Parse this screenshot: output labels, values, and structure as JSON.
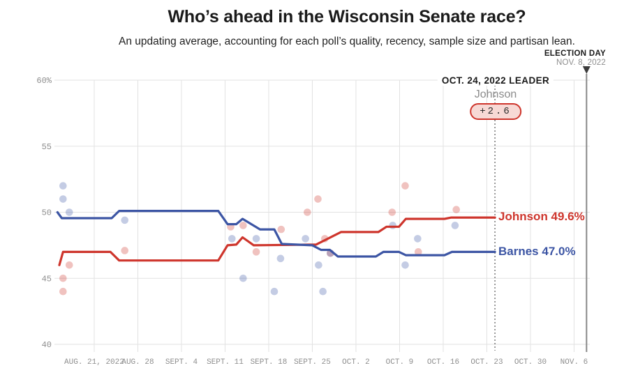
{
  "title": "Who’s ahead in the Wisconsin Senate race?",
  "subtitle": "An updating average, accounting for each poll’s quality, recency, sample size and partisan lean.",
  "election_day": {
    "label": "ELECTION DAY",
    "date": "NOV. 8, 2022"
  },
  "leader_annotation": {
    "heading": "OCT. 24, 2022 LEADER",
    "name": "Johnson",
    "margin": "+2.6"
  },
  "colors": {
    "johnson": "#ce352c",
    "barnes": "#3c55a4",
    "grid": "#e2e2e2",
    "axis_text": "#8e8e8e",
    "dotted_line": "#555555",
    "election_line": "#888888",
    "triangle": "#3b3b3b",
    "badge_fill": "#f7d9d5"
  },
  "chart_data": {
    "type": "line",
    "title": "Who’s ahead in the Wisconsin Senate race?",
    "x_axis": {
      "unit": "days (0 = AUG. 15, 2022)",
      "tick_days": [
        6,
        13,
        20,
        27,
        34,
        41,
        48,
        55,
        62,
        69,
        76,
        83
      ],
      "tick_labels": [
        "AUG. 21, 2022",
        "AUG. 28",
        "SEPT. 4",
        "SEPT. 11",
        "SEPT. 18",
        "SEPT. 25",
        "OCT. 2",
        "OCT. 9",
        "OCT. 16",
        "OCT. 23",
        "OCT. 30",
        "NOV. 6"
      ]
    },
    "y_axis": {
      "tick_values": [
        60,
        55,
        50,
        45,
        40
      ],
      "tick_labels": [
        "60%",
        "55",
        "50",
        "45",
        "40"
      ],
      "range": [
        40,
        60
      ],
      "grid": true
    },
    "series": [
      {
        "name": "Johnson",
        "final_value": 49.6,
        "final_label": "Johnson 49.6%",
        "color_key": "johnson",
        "points": [
          [
            0.4,
            46.0
          ],
          [
            1.0,
            47.0
          ],
          [
            8.6,
            47.0
          ],
          [
            10.0,
            46.35
          ],
          [
            25.9,
            46.35
          ],
          [
            27.4,
            47.5
          ],
          [
            28.8,
            47.55
          ],
          [
            29.8,
            48.1
          ],
          [
            31.6,
            47.5
          ],
          [
            41.6,
            47.55
          ],
          [
            45.6,
            48.5
          ],
          [
            51.6,
            48.5
          ],
          [
            52.9,
            48.9
          ],
          [
            54.9,
            48.9
          ],
          [
            56.0,
            49.5
          ],
          [
            62.2,
            49.5
          ],
          [
            63.3,
            49.6
          ],
          [
            70.3,
            49.6
          ]
        ]
      },
      {
        "name": "Barnes",
        "final_value": 47.0,
        "final_label": "Barnes 47.0%",
        "color_key": "barnes",
        "points": [
          [
            0.1,
            50.0
          ],
          [
            0.8,
            49.55
          ],
          [
            8.8,
            49.55
          ],
          [
            10.0,
            50.1
          ],
          [
            25.9,
            50.1
          ],
          [
            27.4,
            49.1
          ],
          [
            28.8,
            49.1
          ],
          [
            29.8,
            49.5
          ],
          [
            32.6,
            48.7
          ],
          [
            34.9,
            48.7
          ],
          [
            36.1,
            47.6
          ],
          [
            41.0,
            47.5
          ],
          [
            42.4,
            47.15
          ],
          [
            43.8,
            47.15
          ],
          [
            45.1,
            46.65
          ],
          [
            51.2,
            46.65
          ],
          [
            52.4,
            47.0
          ],
          [
            54.9,
            47.0
          ],
          [
            56.0,
            46.75
          ],
          [
            62.2,
            46.75
          ],
          [
            63.4,
            47.0
          ],
          [
            70.3,
            47.0
          ]
        ]
      }
    ],
    "polls": [
      {
        "series": "Johnson",
        "color_key": "johnson",
        "points": [
          [
            1.0,
            44.0
          ],
          [
            1.0,
            45.0
          ],
          [
            2.0,
            46.0
          ],
          [
            10.9,
            47.1
          ],
          [
            27.9,
            48.9
          ],
          [
            29.9,
            49.0
          ],
          [
            32.0,
            47.0
          ],
          [
            36.0,
            48.7
          ],
          [
            40.2,
            50.0
          ],
          [
            41.9,
            51.0
          ],
          [
            43.0,
            48.0
          ],
          [
            43.9,
            46.9
          ],
          [
            53.8,
            50.0
          ],
          [
            55.9,
            52.0
          ],
          [
            58.0,
            47.0
          ],
          [
            64.1,
            50.2
          ]
        ]
      },
      {
        "series": "Barnes",
        "color_key": "barnes",
        "points": [
          [
            1.0,
            52.0
          ],
          [
            1.0,
            51.0
          ],
          [
            2.0,
            50.0
          ],
          [
            10.9,
            49.4
          ],
          [
            28.1,
            48.0
          ],
          [
            29.9,
            45.0
          ],
          [
            32.0,
            48.0
          ],
          [
            34.9,
            44.0
          ],
          [
            35.9,
            46.5
          ],
          [
            39.9,
            48.0
          ],
          [
            42.0,
            46.0
          ],
          [
            42.7,
            44.0
          ],
          [
            43.9,
            46.9
          ],
          [
            53.9,
            49.0
          ],
          [
            55.9,
            46.0
          ],
          [
            57.9,
            48.0
          ],
          [
            63.9,
            49.0
          ]
        ]
      }
    ],
    "annotations": {
      "leader_day": 70.3,
      "election_day": 85
    },
    "legend_position": "end-of-line labels"
  }
}
